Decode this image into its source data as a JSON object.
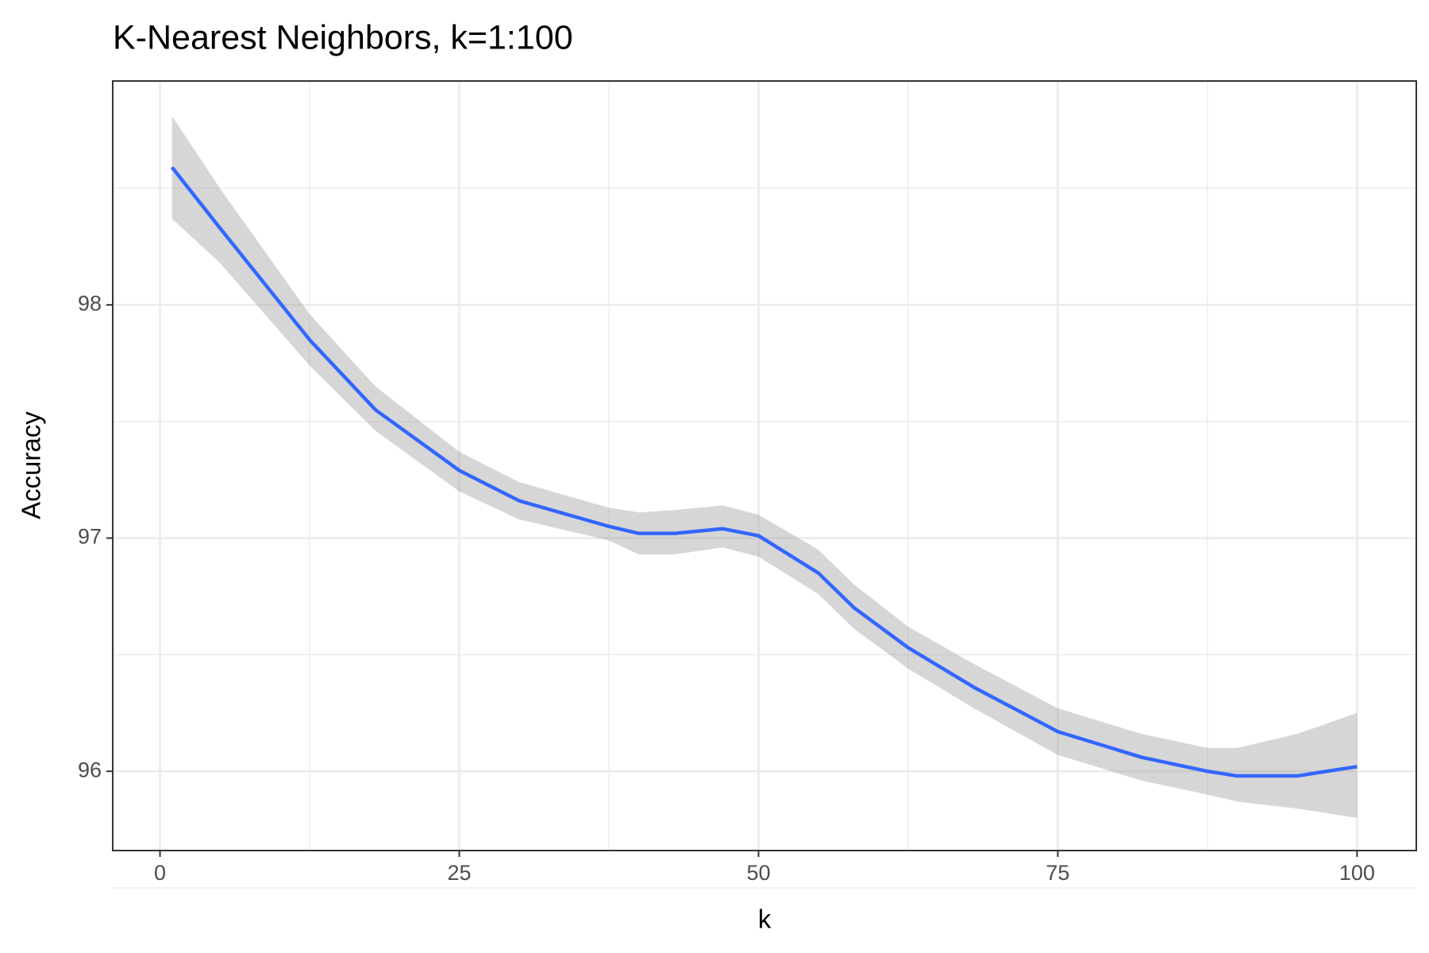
{
  "chart_data": {
    "type": "line",
    "title": "K-Nearest Neighbors, k=1:100",
    "xlabel": "k",
    "ylabel": "Accuracy",
    "x": [
      1,
      5,
      12.5,
      18,
      25,
      30,
      37.5,
      40,
      43,
      47,
      50,
      55,
      58,
      62.5,
      68,
      75,
      82,
      87.5,
      90,
      95,
      100
    ],
    "series": [
      {
        "color": "#3366ff",
        "values": [
          98.59,
          98.33,
          97.85,
          97.55,
          97.29,
          97.16,
          97.05,
          97.02,
          97.02,
          97.04,
          97.01,
          96.85,
          96.7,
          96.53,
          96.36,
          96.17,
          96.06,
          96.0,
          95.98,
          95.98,
          96.02
        ]
      }
    ],
    "band": {
      "color": "#999999",
      "lower": [
        98.37,
        98.18,
        97.74,
        97.46,
        97.2,
        97.08,
        96.99,
        96.93,
        96.93,
        96.96,
        96.92,
        96.76,
        96.61,
        96.44,
        96.27,
        96.07,
        95.96,
        95.9,
        95.87,
        95.84,
        95.8
      ],
      "upper": [
        98.81,
        98.5,
        97.96,
        97.65,
        97.37,
        97.24,
        97.13,
        97.11,
        97.12,
        97.14,
        97.1,
        96.95,
        96.8,
        96.62,
        96.46,
        96.27,
        96.16,
        96.1,
        96.1,
        96.16,
        96.25
      ]
    },
    "xlim": [
      -3.95,
      104.95
    ],
    "xticks": [
      0,
      25,
      50,
      75,
      100
    ],
    "xminorticks": [
      12.5,
      37.5,
      62.5,
      87.5
    ],
    "ylim": [
      95.66,
      98.96
    ],
    "yticks": [
      96,
      97,
      98
    ],
    "yminorticks": [
      95.5,
      96.5,
      97.5,
      98.5
    ],
    "grid": true
  }
}
